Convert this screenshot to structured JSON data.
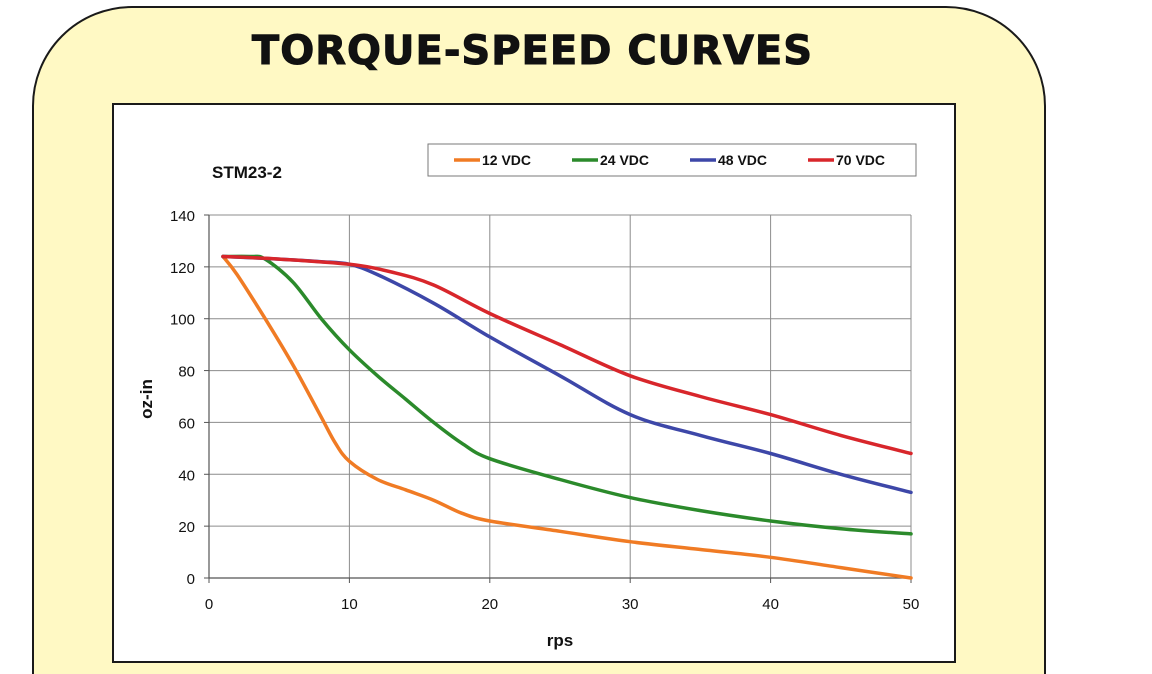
{
  "page": {
    "title": "TORQUE-SPEED CURVES"
  },
  "colors": {
    "panel_bg": "#fff9c4",
    "grid": "#8c8c8c",
    "axis": "#555555"
  },
  "chart_data": {
    "type": "line",
    "title": "STM23-2",
    "xlabel": "rps",
    "ylabel": "oz-in",
    "xlim": [
      0,
      50
    ],
    "ylim": [
      0,
      140
    ],
    "xticks": [
      0,
      10,
      20,
      30,
      40,
      50
    ],
    "yticks": [
      0,
      20,
      40,
      60,
      80,
      100,
      120,
      140
    ],
    "grid": true,
    "legend_position": "top-right",
    "series": [
      {
        "name": "12 VDC",
        "color": "#f07b24",
        "points": [
          [
            1,
            124
          ],
          [
            2,
            117
          ],
          [
            4,
            100
          ],
          [
            6,
            82
          ],
          [
            8,
            62
          ],
          [
            9,
            52
          ],
          [
            10,
            45
          ],
          [
            12,
            38
          ],
          [
            14,
            34
          ],
          [
            16,
            30
          ],
          [
            18,
            25
          ],
          [
            20,
            22
          ],
          [
            25,
            18
          ],
          [
            30,
            14
          ],
          [
            35,
            11
          ],
          [
            40,
            8
          ],
          [
            45,
            4
          ],
          [
            50,
            0
          ]
        ]
      },
      {
        "name": "24 VDC",
        "color": "#2b8a2b",
        "points": [
          [
            1,
            124
          ],
          [
            3,
            124
          ],
          [
            4,
            123
          ],
          [
            6,
            114
          ],
          [
            8,
            100
          ],
          [
            10,
            88
          ],
          [
            12,
            78
          ],
          [
            14,
            69
          ],
          [
            16,
            60
          ],
          [
            18,
            52
          ],
          [
            20,
            46
          ],
          [
            25,
            38
          ],
          [
            30,
            31
          ],
          [
            35,
            26
          ],
          [
            40,
            22
          ],
          [
            45,
            19
          ],
          [
            50,
            17
          ]
        ]
      },
      {
        "name": "48 VDC",
        "color": "#3d47a8",
        "points": [
          [
            1,
            124
          ],
          [
            5,
            123
          ],
          [
            8,
            122
          ],
          [
            10,
            121
          ],
          [
            12,
            117
          ],
          [
            16,
            106
          ],
          [
            20,
            93
          ],
          [
            25,
            78
          ],
          [
            30,
            63
          ],
          [
            35,
            55
          ],
          [
            40,
            48
          ],
          [
            45,
            40
          ],
          [
            50,
            33
          ]
        ]
      },
      {
        "name": "70 VDC",
        "color": "#d8262b",
        "points": [
          [
            1,
            124
          ],
          [
            5,
            123
          ],
          [
            10,
            121
          ],
          [
            13,
            118
          ],
          [
            16,
            113
          ],
          [
            20,
            102
          ],
          [
            25,
            90
          ],
          [
            30,
            78
          ],
          [
            35,
            70
          ],
          [
            40,
            63
          ],
          [
            45,
            55
          ],
          [
            50,
            48
          ]
        ]
      }
    ]
  }
}
